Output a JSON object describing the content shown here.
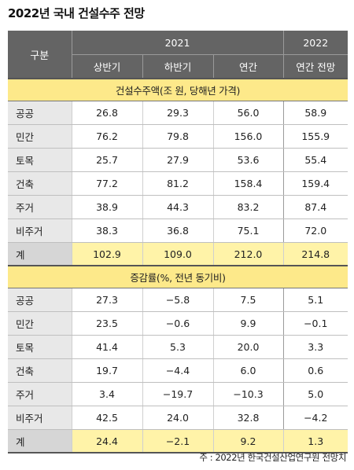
{
  "title": "2022년 국내 건설수주 전망",
  "header": {
    "category": "구분",
    "year1": "2021",
    "year2": "2022",
    "sub": [
      "상반기",
      "하반기",
      "연간",
      "연간 전망"
    ]
  },
  "section1": {
    "title": "건설수주액(조 원, 당해년 가격)",
    "rows": [
      {
        "label": "공공",
        "values": [
          "26.8",
          "29.3",
          "56.0",
          "58.9"
        ]
      },
      {
        "label": "민간",
        "values": [
          "76.2",
          "79.8",
          "156.0",
          "155.9"
        ]
      },
      {
        "label": "토목",
        "values": [
          "25.7",
          "27.9",
          "53.6",
          "55.4"
        ]
      },
      {
        "label": "건축",
        "values": [
          "77.2",
          "81.2",
          "158.4",
          "159.4"
        ]
      },
      {
        "label": "주거",
        "values": [
          "38.9",
          "44.3",
          "83.2",
          "87.4"
        ]
      },
      {
        "label": "비주거",
        "values": [
          "38.3",
          "36.8",
          "75.1",
          "72.0"
        ]
      }
    ],
    "total": {
      "label": "계",
      "values": [
        "102.9",
        "109.0",
        "212.0",
        "214.8"
      ]
    }
  },
  "section2": {
    "title": "증감률(%, 전년 동기비)",
    "rows": [
      {
        "label": "공공",
        "values": [
          "27.3",
          "−5.8",
          "7.5",
          "5.1"
        ]
      },
      {
        "label": "민간",
        "values": [
          "23.5",
          "−0.6",
          "9.9",
          "−0.1"
        ]
      },
      {
        "label": "토목",
        "values": [
          "41.4",
          "5.3",
          "20.0",
          "3.3"
        ]
      },
      {
        "label": "건축",
        "values": [
          "19.7",
          "−4.4",
          "6.0",
          "0.6"
        ]
      },
      {
        "label": "주거",
        "values": [
          "3.4",
          "−19.7",
          "−10.3",
          "5.0"
        ]
      },
      {
        "label": "비주거",
        "values": [
          "42.5",
          "24.0",
          "32.8",
          "−4.2"
        ]
      }
    ],
    "total": {
      "label": "계",
      "values": [
        "24.4",
        "−2.1",
        "9.2",
        "1.3"
      ]
    }
  },
  "note": "주 : 2022년 한국건설산업연구원 전망치"
}
